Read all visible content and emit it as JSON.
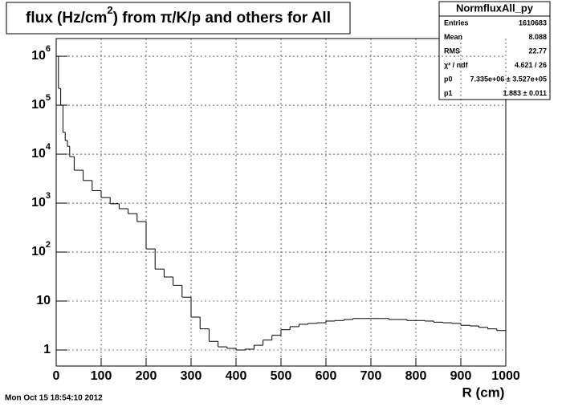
{
  "chart_data": {
    "type": "histogram",
    "title_parts": [
      "flux (Hz/cm",
      "2",
      ") from π/K/p and others  for All"
    ],
    "x_label": "R (cm)",
    "timestamp": "Mon Oct 15 18:54:10 2012",
    "stats": {
      "title": "NormfluxAll_py",
      "rows": [
        [
          "Entries",
          "1610683"
        ],
        [
          "Mean",
          "8.088"
        ],
        [
          "RMS",
          "22.77"
        ],
        [
          "χ² / ndf",
          "4.621 / 26"
        ],
        [
          "p0",
          "7.335e+06 ± 3.527e+05"
        ],
        [
          "p1",
          "1.883 ± 0.011"
        ]
      ]
    },
    "bins": [
      0,
      5,
      10,
      15,
      20,
      25,
      30,
      40,
      60,
      80,
      100,
      120,
      140,
      160,
      180,
      200,
      220,
      240,
      260,
      280,
      300,
      320,
      340,
      360,
      380,
      400,
      420,
      440,
      460,
      480,
      500,
      520,
      540,
      560,
      580,
      600,
      620,
      640,
      660,
      680,
      700,
      720,
      740,
      760,
      780,
      800,
      820,
      840,
      860,
      880,
      900,
      920,
      940,
      960,
      980,
      1000
    ],
    "values": [
      1000000,
      220000,
      100000,
      28000,
      19000,
      14500,
      8900,
      4700,
      2900,
      1800,
      1300,
      970,
      770,
      610,
      420,
      116,
      45,
      31,
      21,
      12,
      4.7,
      2.7,
      1.5,
      1.16,
      1.08,
      1.0,
      1.04,
      1.25,
      1.6,
      2.0,
      2.6,
      3.0,
      3.35,
      3.5,
      3.6,
      3.9,
      4.0,
      4.2,
      4.4,
      4.4,
      4.4,
      4.4,
      4.2,
      4.2,
      4.0,
      4.0,
      3.9,
      3.7,
      3.6,
      3.5,
      3.2,
      3.1,
      2.9,
      2.7,
      2.5
    ],
    "color": "#000000",
    "log_y": true,
    "grid": true,
    "xlim": [
      0,
      1000
    ],
    "xticks": [
      0,
      100,
      200,
      300,
      400,
      500,
      600,
      700,
      800,
      900,
      1000
    ],
    "ylim": [
      0.47,
      2300000
    ],
    "yticks": [
      1,
      {
        "value": 10,
        "label": "10"
      },
      {
        "value": 100,
        "label": "10",
        "exponent": "2"
      },
      {
        "value": 1000,
        "label": "10",
        "exponent": "3"
      },
      {
        "value": 10000,
        "label": "10",
        "exponent": "4"
      },
      {
        "value": 100000,
        "label": "10",
        "exponent": "5"
      },
      {
        "value": 1000000,
        "label": "10",
        "exponent": "6"
      }
    ]
  }
}
